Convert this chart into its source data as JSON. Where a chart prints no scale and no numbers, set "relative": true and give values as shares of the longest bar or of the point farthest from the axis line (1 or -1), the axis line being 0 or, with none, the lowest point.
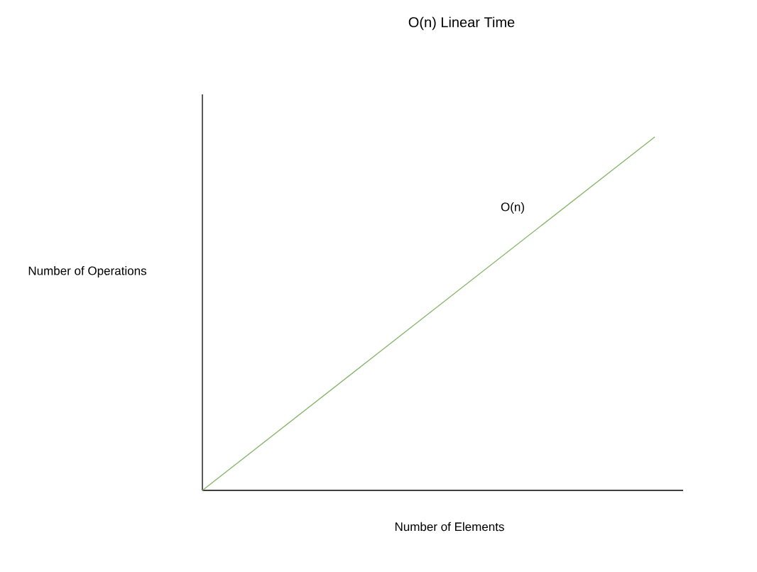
{
  "chart_data": {
    "type": "line",
    "title": "O(n) Linear Time",
    "xlabel": "Number of Elements",
    "ylabel": "Number of Operations",
    "relative": true,
    "categories": [
      null,
      null
    ],
    "series": [
      {
        "name": "O(n)",
        "color": "#82b366",
        "values": [
          0,
          1
        ]
      }
    ]
  }
}
